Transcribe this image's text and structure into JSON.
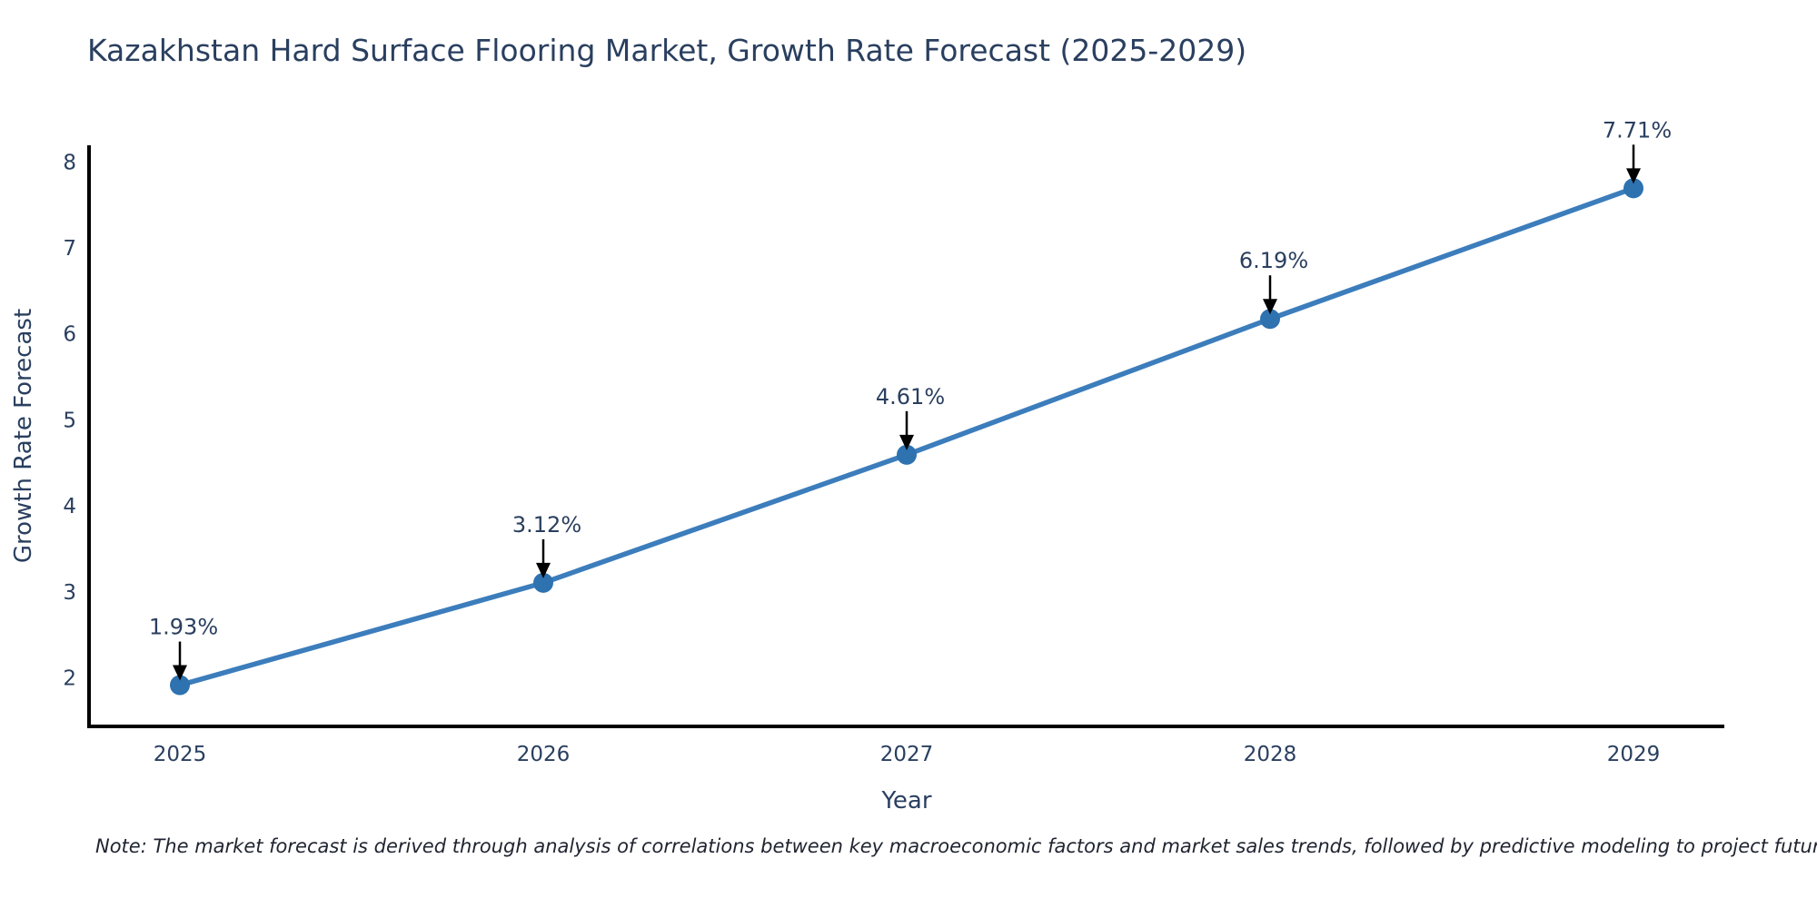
{
  "title": "Kazakhstan Hard Surface Flooring Market, Growth Rate Forecast (2025-2029)",
  "note": "Note: The market forecast is derived through analysis of correlations between key macroeconomic factors and market sales trends, followed by predictive modeling to project future sales.",
  "chart_data": {
    "type": "line",
    "title": "Kazakhstan Hard Surface Flooring Market, Growth Rate Forecast (2025-2029)",
    "xlabel": "Year",
    "ylabel": "Growth Rate Forecast",
    "x": [
      2025,
      2026,
      2027,
      2028,
      2029
    ],
    "values": [
      1.93,
      3.12,
      4.61,
      6.19,
      7.71
    ],
    "point_labels": [
      "1.93%",
      "3.12%",
      "4.61%",
      "6.19%",
      "7.71%"
    ],
    "xticks": [
      "2025",
      "2026",
      "2027",
      "2028",
      "2029"
    ],
    "yticks": [
      2,
      3,
      4,
      5,
      6,
      7,
      8
    ],
    "xlim": [
      2024.75,
      2029.25
    ],
    "ylim": [
      1.45,
      8.21
    ],
    "grid": false,
    "legend": null,
    "colors": {
      "line": "#3c7dbc",
      "marker": "#2e72b0",
      "arrow": "#000000",
      "axis": "#000000",
      "text": "#2a3f5f"
    }
  }
}
